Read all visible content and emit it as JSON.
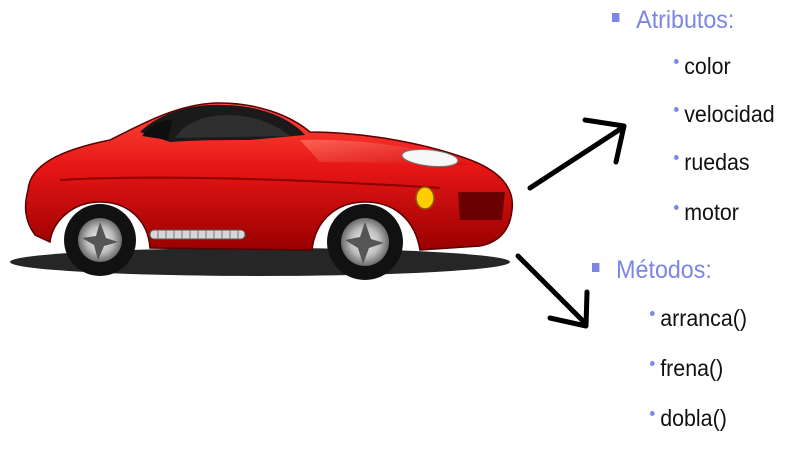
{
  "attributes": {
    "title": "Atributos:",
    "items": [
      "color",
      "velocidad",
      "ruedas",
      "motor"
    ]
  },
  "methods": {
    "title": "Métodos:",
    "items": [
      "arranca()",
      "frena()",
      "dobla()"
    ]
  },
  "colors": {
    "heading": "#7b86e6",
    "car_body": "#e31b1b",
    "arrow": "#000000"
  },
  "icons": {
    "car": "red-sports-car",
    "arrows": [
      "arrow-to-attributes",
      "arrow-to-methods"
    ]
  }
}
